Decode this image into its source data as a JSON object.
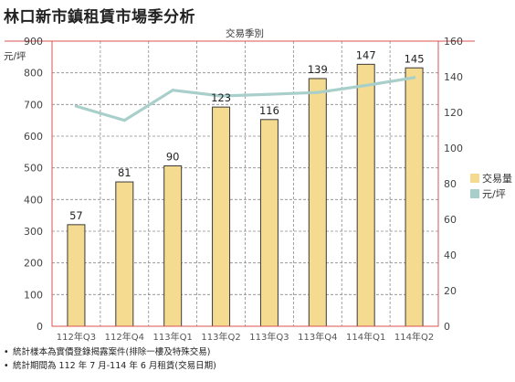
{
  "chart_data": {
    "type": "bar",
    "title": "林口新市鎮租賃市場季分析",
    "xlabel": "交易季別",
    "ylabel": "元/坪",
    "categories": [
      "112年Q3",
      "112年Q4",
      "113年Q1",
      "113年Q2",
      "113年Q3",
      "113年Q4",
      "114年Q1",
      "114年Q2"
    ],
    "series": [
      {
        "name": "交易量",
        "type": "bar",
        "axis": "right",
        "color": "#f5db8f",
        "values": [
          57,
          81,
          90,
          123,
          116,
          139,
          147,
          145
        ]
      },
      {
        "name": "元/坪",
        "type": "line",
        "axis": "left",
        "color": "#a9cfcb",
        "values": [
          695,
          650,
          745,
          727,
          732,
          738,
          760,
          785
        ]
      }
    ],
    "y_left": {
      "ylim": [
        0,
        900
      ],
      "ticks": [
        "0",
        "100",
        "200",
        "300",
        "400",
        "500",
        "600",
        "700",
        "800",
        "900"
      ]
    },
    "y_right": {
      "ylim": [
        0,
        160
      ],
      "ticks": [
        "0",
        "20",
        "40",
        "60",
        "80",
        "100",
        "120",
        "140",
        "160"
      ]
    },
    "grid": true,
    "legend_position": "right"
  },
  "notes": [
    "統計樣本為實價登錄揭露案件(排除一樓及特殊交易)",
    "統計期間為 112 年 7 月-114 年 6 月租賃(交易日期)"
  ],
  "bullet": "•"
}
